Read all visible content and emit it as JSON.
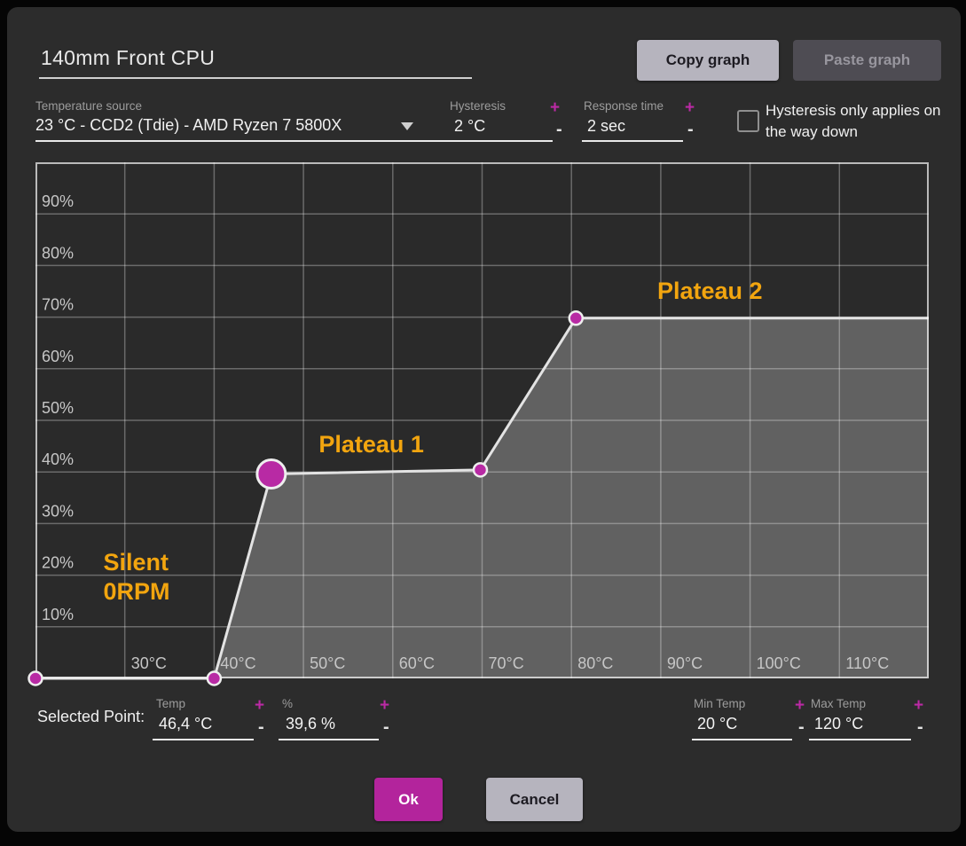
{
  "colors": {
    "accent": "#bb2aa5",
    "ok_button": "#b3249c",
    "annotation": "#f2a50f"
  },
  "dialog": {
    "title": "140mm Front CPU",
    "copy_button": "Copy graph",
    "paste_button": "Paste graph",
    "temperature_source": {
      "label": "Temperature source",
      "value": "23 °C - CCD2 (Tdie) - AMD Ryzen 7 5800X"
    },
    "hysteresis": {
      "label": "Hysteresis",
      "value": "2 °C",
      "plus": "+",
      "minus": "-"
    },
    "response_time": {
      "label": "Response time",
      "value": "2 sec",
      "plus": "+",
      "minus": "-"
    },
    "hysteresis_checkbox": {
      "label": "Hysteresis only applies on the way down",
      "checked": false
    },
    "selected_point": {
      "label": "Selected Point:",
      "temp": {
        "label": "Temp",
        "value": "46,4 °C",
        "plus": "+",
        "minus": "-"
      },
      "percent": {
        "label": "%",
        "value": "39,6 %",
        "plus": "+",
        "minus": "-"
      }
    },
    "min_temp": {
      "label": "Min Temp",
      "value": "20 °C",
      "plus": "+",
      "minus": "-"
    },
    "max_temp": {
      "label": "Max Temp",
      "value": "120 °C",
      "plus": "+",
      "minus": "-"
    },
    "ok_button": "Ok",
    "cancel_button": "Cancel"
  },
  "chart_data": {
    "type": "line",
    "x_range": [
      20,
      120
    ],
    "y_range": [
      0,
      100
    ],
    "grid": true,
    "x_ticks": [
      {
        "value": 30,
        "label": "30°C"
      },
      {
        "value": 40,
        "label": "40°C"
      },
      {
        "value": 50,
        "label": "50°C"
      },
      {
        "value": 60,
        "label": "60°C"
      },
      {
        "value": 70,
        "label": "70°C"
      },
      {
        "value": 80,
        "label": "80°C"
      },
      {
        "value": 90,
        "label": "90°C"
      },
      {
        "value": 100,
        "label": "100°C"
      },
      {
        "value": 110,
        "label": "110°C"
      }
    ],
    "y_ticks": [
      {
        "value": 10,
        "label": "10%"
      },
      {
        "value": 20,
        "label": "20%"
      },
      {
        "value": 30,
        "label": "30%"
      },
      {
        "value": 40,
        "label": "40%"
      },
      {
        "value": 50,
        "label": "50%"
      },
      {
        "value": 60,
        "label": "60%"
      },
      {
        "value": 70,
        "label": "70%"
      },
      {
        "value": 80,
        "label": "80%"
      },
      {
        "value": 90,
        "label": "90%"
      }
    ],
    "curve": [
      {
        "temp": 20,
        "percent": 0,
        "marker": "small"
      },
      {
        "temp": 40,
        "percent": 0,
        "marker": "small"
      },
      {
        "temp": 46.4,
        "percent": 39.6,
        "marker": "selected"
      },
      {
        "temp": 69.8,
        "percent": 40.4,
        "marker": "small"
      },
      {
        "temp": 80.5,
        "percent": 69.8,
        "marker": "small"
      },
      {
        "temp": 120,
        "percent": 69.8,
        "marker": "none"
      }
    ],
    "annotations": [
      {
        "text": "Plateau 2",
        "temp": 95.5,
        "percent": 73.5,
        "align": "middle"
      },
      {
        "text": "Plateau 1",
        "temp": 57.6,
        "percent": 43.8,
        "align": "middle"
      },
      {
        "text": "Silent",
        "temp": 27.6,
        "percent": 21.0,
        "align": "start"
      },
      {
        "text": "0RPM",
        "temp": 27.6,
        "percent": 15.3,
        "align": "start"
      }
    ],
    "colors": {
      "plot_bg": "#2a2a2a",
      "grid": "rgba(255,255,255,0.30)",
      "area": "rgba(255,255,255,0.26)",
      "line": "#e3e3e3",
      "border": "rgba(255,255,255,0.68)",
      "point_fill": "#b82aa4",
      "point_stroke": "#eeeeee",
      "tick": "#c6c6c6",
      "annotation": "#f2a50f"
    }
  }
}
